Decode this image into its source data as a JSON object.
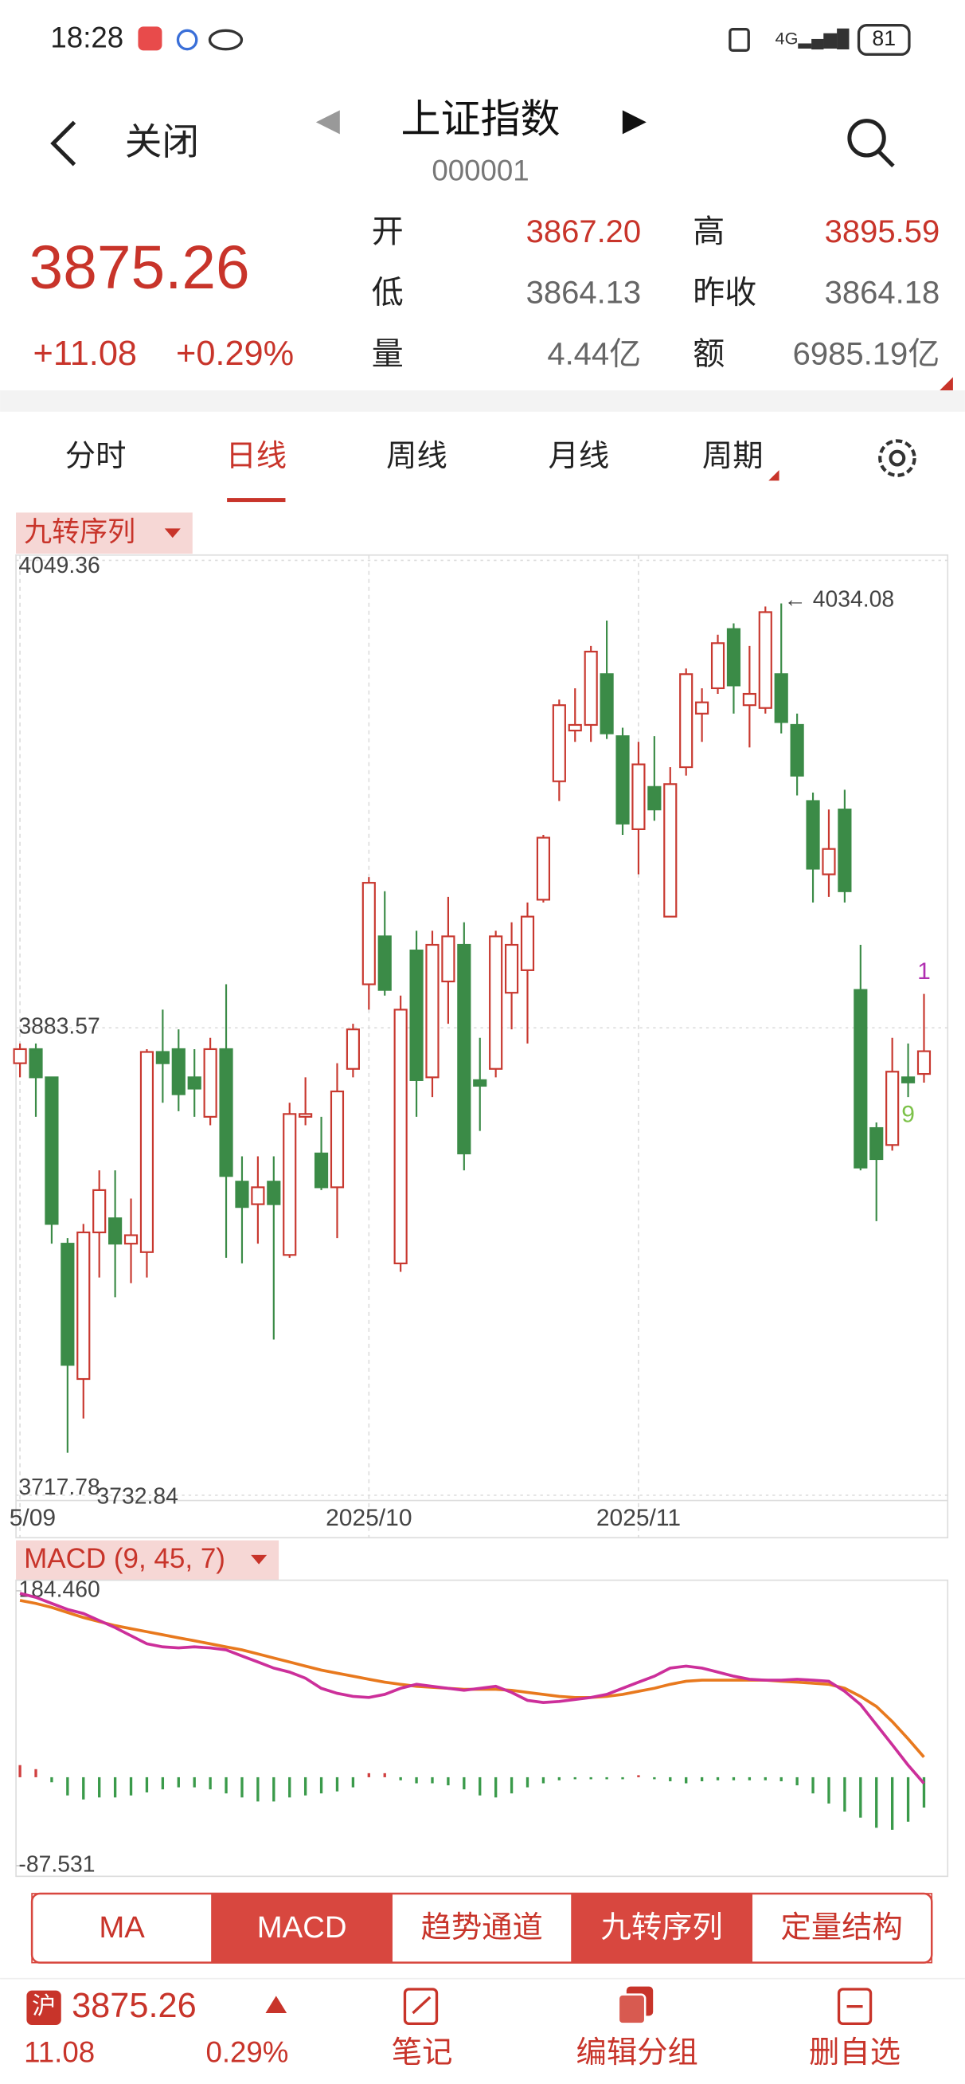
{
  "status_bar": {
    "time": "18:28",
    "battery": "81"
  },
  "header": {
    "back": "关闭",
    "title": "上证指数",
    "code": "000001"
  },
  "quote": {
    "price": "3875.26",
    "change": "+11.08",
    "change_pct": "+0.29%",
    "fields": [
      {
        "label": "开",
        "value": "3867.20",
        "color": "#c8342a"
      },
      {
        "label": "高",
        "value": "3895.59",
        "color": "#c8342a"
      },
      {
        "label": "低",
        "value": "3864.13",
        "color": "#666666"
      },
      {
        "label": "昨收",
        "value": "3864.18",
        "color": "#666666"
      },
      {
        "label": "量",
        "value": "4.44亿",
        "color": "#666666"
      },
      {
        "label": "额",
        "value": "6985.19亿",
        "color": "#666666"
      }
    ]
  },
  "tabs": [
    "分时",
    "日线",
    "周线",
    "月线",
    "周期"
  ],
  "active_tab": 1,
  "indicator_chip": "九转序列",
  "chart_data": [
    {
      "type": "candlestick",
      "categories": [
        "5/09",
        null,
        null,
        null,
        null,
        null,
        null,
        null,
        null,
        null,
        null,
        null,
        null,
        null,
        null,
        null,
        null,
        null,
        null,
        null,
        null,
        null,
        "2025/10",
        null,
        null,
        null,
        null,
        null,
        null,
        null,
        null,
        null,
        null,
        null,
        null,
        null,
        null,
        null,
        null,
        "2025/11",
        null,
        null,
        null,
        null,
        null,
        null,
        null,
        null,
        null,
        null,
        null,
        null,
        null,
        null,
        null,
        null,
        null,
        null
      ],
      "open": [
        3871,
        3876,
        3866,
        3807,
        3759,
        3811,
        3816,
        3807,
        3804,
        3875,
        3876,
        3866,
        3852,
        3876,
        3829,
        3821,
        3829,
        3803,
        3852,
        3839,
        3827,
        3869,
        3899,
        3916,
        3800,
        3911,
        3866,
        3900,
        3913,
        3865,
        3869,
        3896,
        3904,
        3929,
        3971,
        3989,
        3991,
        4009,
        3987,
        3954,
        3969,
        3923,
        3976,
        3995,
        4004,
        4025,
        3998,
        3997,
        4009,
        3991,
        3964,
        3938,
        3961,
        3897,
        3848,
        3842,
        3866,
        3867.2
      ],
      "high": [
        3878,
        3878,
        3866,
        3809,
        3814,
        3833,
        3833,
        3823,
        3876,
        3890,
        3883,
        3876,
        3880,
        3899,
        3838,
        3838,
        3838,
        3857,
        3866,
        3852,
        3871,
        3885,
        3937,
        3932,
        3895,
        3918,
        3918,
        3930,
        3921,
        3880,
        3918,
        3921,
        3928,
        3952,
        4000,
        4004,
        4019,
        4028,
        3990,
        3985,
        3987,
        3976,
        4011,
        4004,
        4023,
        4027,
        4019,
        4033,
        4034.08,
        3995,
        3967,
        3961,
        3968,
        3913,
        3850,
        3880,
        3878,
        3895.59
      ],
      "low": [
        3866,
        3852,
        3807,
        3732.84,
        3745,
        3795,
        3788,
        3793,
        3795,
        3857,
        3854,
        3852,
        3849,
        3802,
        3800,
        3807,
        3773,
        3802,
        3849,
        3826,
        3809,
        3866,
        3890,
        3895,
        3797,
        3852,
        3859,
        3885,
        3833,
        3847,
        3866,
        3883,
        3878,
        3928,
        3964,
        3985,
        3985,
        3986,
        3952,
        3938,
        3957,
        3923,
        3973,
        3985,
        4002,
        3995,
        3983,
        3995,
        3988,
        3966,
        3928,
        3930,
        3928,
        3833,
        3815,
        3840,
        3859,
        3864.13
      ],
      "close": [
        3876,
        3866,
        3814,
        3764,
        3811,
        3826,
        3807,
        3810,
        3875,
        3871,
        3860,
        3862,
        3876,
        3831,
        3820,
        3827,
        3821,
        3853,
        3853,
        3827,
        3861,
        3883,
        3935,
        3897,
        3890,
        3865,
        3913,
        3916,
        3839,
        3863,
        3916,
        3913,
        3923,
        3951,
        3998,
        3991,
        4017,
        3988,
        3956,
        3977,
        3961,
        3970,
        4009,
        3999,
        4020,
        4005,
        4002,
        4031,
        3992,
        3973,
        3940,
        3947,
        3932,
        3834,
        3837,
        3868,
        3864.18,
        3875.26
      ],
      "up_color": "#c8382f",
      "down_color": "#3b8b47",
      "ylim": [
        3717.78,
        4049.36
      ],
      "yticks": [
        4049.36,
        3883.57,
        3717.78
      ],
      "grid": true,
      "annotations": [
        {
          "index": 48,
          "value": 4034.08,
          "label": "← 4034.08"
        },
        {
          "index": 3,
          "value": 3732.84,
          "label": "3732.84"
        }
      ],
      "signals": [
        {
          "index": 57,
          "label": "1",
          "color": "#b02fb0"
        },
        {
          "index": 56,
          "label": "9",
          "color": "#7dc24a"
        }
      ]
    },
    {
      "type": "macd",
      "title": "MACD (9, 45, 7)",
      "series": [
        {
          "color": "#cc2f9a",
          "values": [
            182,
            178,
            172,
            166,
            162,
            155,
            148,
            140,
            132,
            129,
            128,
            129,
            128,
            126,
            120,
            114,
            108,
            104,
            98,
            88,
            83,
            80,
            79,
            82,
            88,
            92,
            90,
            88,
            86,
            88,
            90,
            84,
            76,
            74,
            75,
            77,
            79,
            82,
            88,
            94,
            100,
            108,
            110,
            108,
            104,
            100,
            97,
            96,
            96,
            97,
            96,
            95,
            85,
            72,
            52,
            32,
            12,
            -6
          ]
        },
        {
          "color": "#e8791e",
          "values": [
            175,
            172,
            168,
            163,
            158,
            154,
            150,
            147,
            144,
            141,
            138,
            135,
            132,
            129,
            126,
            122,
            118,
            114,
            110,
            106,
            103,
            100,
            97,
            94,
            92,
            90,
            89,
            88,
            87,
            87,
            87,
            86,
            84,
            82,
            80,
            79,
            79,
            80,
            82,
            85,
            88,
            92,
            95,
            96,
            96,
            96,
            96,
            96,
            95,
            94,
            93,
            92,
            88,
            80,
            70,
            55,
            38,
            20
          ]
        }
      ],
      "histogram": {
        "up_color": "#d04040",
        "down_color": "#3a9a4a",
        "values": [
          12,
          8,
          -5,
          -18,
          -22,
          -20,
          -20,
          -18,
          -15,
          -12,
          -10,
          -10,
          -12,
          -16,
          -20,
          -24,
          -24,
          -20,
          -18,
          -16,
          -14,
          -10,
          4,
          4,
          -3,
          -6,
          -6,
          -8,
          -12,
          -18,
          -20,
          -16,
          -10,
          -6,
          -3,
          -2,
          -2,
          -2,
          -2,
          2,
          -2,
          -4,
          -6,
          -4,
          -3,
          -3,
          -3,
          -3,
          -4,
          -8,
          -16,
          -26,
          -34,
          -40,
          -50,
          -52,
          -44,
          -30
        ]
      },
      "ylim": [
        -87.531,
        184.46
      ],
      "yticks": [
        {
          "value": 184.46,
          "label": "184.460"
        },
        -87.531
      ]
    }
  ],
  "indicator_buttons": [
    "MA",
    "MACD",
    "趋势通道",
    "九转序列",
    "定量结构"
  ],
  "active_buttons": [
    1,
    3
  ],
  "bottom_bar": {
    "market": "沪",
    "price": "3875.26",
    "change": "11.08",
    "change_pct": "0.29%",
    "actions": [
      "笔记",
      "编辑分组",
      "删自选"
    ]
  }
}
